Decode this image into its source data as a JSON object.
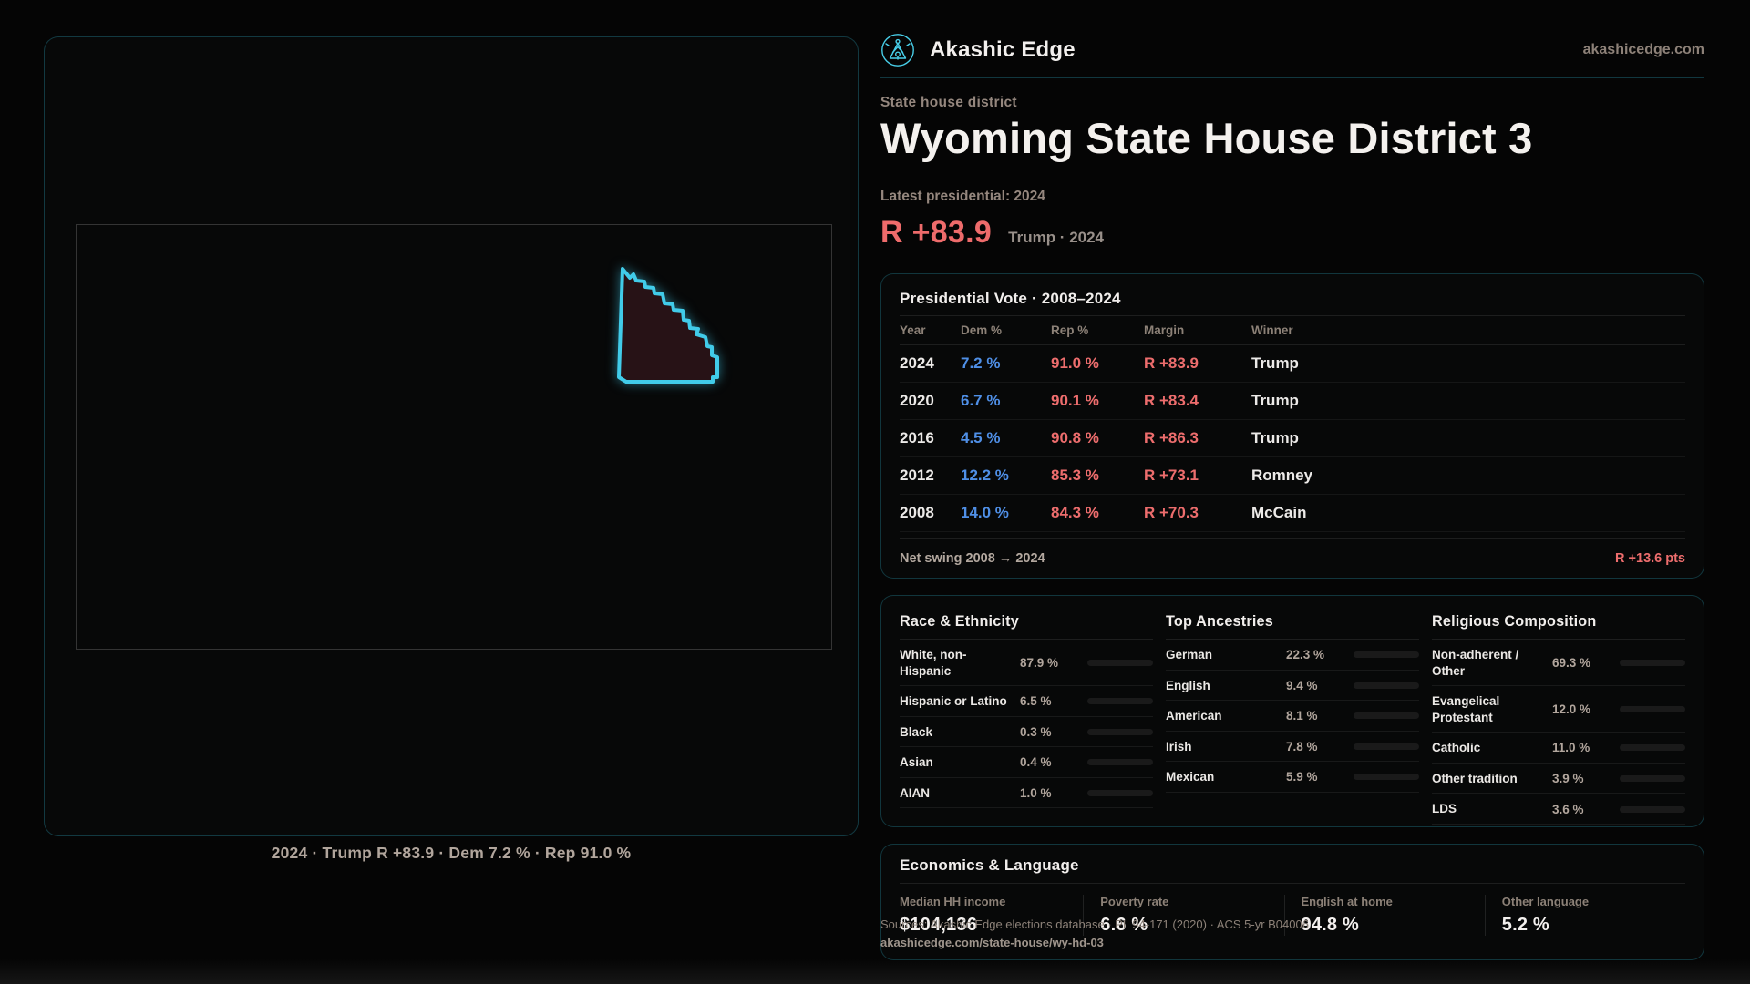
{
  "brand": {
    "name": "Akashic Edge",
    "site": "akashicedge.com"
  },
  "hero": {
    "eyebrow": "State house district",
    "title": "Wyoming State House District 3",
    "latest_label": "Latest presidential: 2024",
    "margin_value": "R +83.9",
    "margin_context": "Trump · 2024"
  },
  "map": {
    "caption": "2024 · Trump R +83.9 · Dem 7.2 % · Rep 91.0 %"
  },
  "presidential": {
    "title": "Presidential Vote · 2008–2024",
    "columns": [
      "Year",
      "Dem %",
      "Rep %",
      "Margin",
      "Winner"
    ],
    "rows": [
      {
        "year": "2024",
        "dem": "7.2 %",
        "rep": "91.0 %",
        "margin": "R +83.9",
        "winner": "Trump"
      },
      {
        "year": "2020",
        "dem": "6.7 %",
        "rep": "90.1 %",
        "margin": "R +83.4",
        "winner": "Trump"
      },
      {
        "year": "2016",
        "dem": "4.5 %",
        "rep": "90.8 %",
        "margin": "R +86.3",
        "winner": "Trump"
      },
      {
        "year": "2012",
        "dem": "12.2 %",
        "rep": "85.3 %",
        "margin": "R +73.1",
        "winner": "Romney"
      },
      {
        "year": "2008",
        "dem": "14.0 %",
        "rep": "84.3 %",
        "margin": "R +70.3",
        "winner": "McCain"
      }
    ],
    "net_swing_label": "Net swing 2008 → 2024",
    "net_swing_value": "R +13.6 pts"
  },
  "demographics": {
    "panels": [
      {
        "title": "Race & Ethnicity",
        "rows": [
          {
            "label": "White, non-Hispanic",
            "value": "87.9 %",
            "pct": 87.9,
            "color": "#93a7c0"
          },
          {
            "label": "Hispanic or Latino",
            "value": "6.5 %",
            "pct": 6.5,
            "color": "#e2a43e"
          },
          {
            "label": "Black",
            "value": "0.3 %",
            "pct": 0.3,
            "color": "#8d7fdb"
          },
          {
            "label": "Asian",
            "value": "0.4 %",
            "pct": 0.4,
            "color": "#38cfa4"
          },
          {
            "label": "AIAN",
            "value": "1.0 %",
            "pct": 1.0,
            "color": "#e07f37"
          }
        ]
      },
      {
        "title": "Top Ancestries",
        "rows": [
          {
            "label": "German",
            "value": "22.3 %",
            "pct": 22.3,
            "color": "#8fa6c2"
          },
          {
            "label": "English",
            "value": "9.4 %",
            "pct": 9.4,
            "color": "#8fa6c2"
          },
          {
            "label": "American",
            "value": "8.1 %",
            "pct": 8.1,
            "color": "#8fa6c2"
          },
          {
            "label": "Irish",
            "value": "7.8 %",
            "pct": 7.8,
            "color": "#8fa6c2"
          },
          {
            "label": "Mexican",
            "value": "5.9 %",
            "pct": 5.9,
            "color": "#e2a43e"
          }
        ]
      },
      {
        "title": "Religious Composition",
        "rows": [
          {
            "label": "Non-adherent / Other",
            "value": "69.3 %",
            "pct": 69.3,
            "color": "#767f8d"
          },
          {
            "label": "Evangelical Protestant",
            "value": "12.0 %",
            "pct": 12.0,
            "color": "#e87070"
          },
          {
            "label": "Catholic",
            "value": "11.0 %",
            "pct": 11.0,
            "color": "#e4bb3f"
          },
          {
            "label": "Other tradition",
            "value": "3.9 %",
            "pct": 3.9,
            "color": "#9aa2ad"
          },
          {
            "label": "LDS",
            "value": "3.6 %",
            "pct": 3.6,
            "color": "#2ed3b7"
          }
        ]
      }
    ]
  },
  "economics": {
    "title": "Economics & Language",
    "stats": [
      {
        "label": "Median HH income",
        "value": "$104,136"
      },
      {
        "label": "Poverty rate",
        "value": "6.6 %"
      },
      {
        "label": "English at home",
        "value": "94.8 %"
      },
      {
        "label": "Other language",
        "value": "5.2 %"
      }
    ]
  },
  "footer": {
    "sources": "Sources: Akashic Edge elections database · PL 94-171 (2020) · ACS 5-yr B04006",
    "permalink": "akashicedge.com/state-house/wy-hd-03"
  },
  "colors": {
    "accent_cyan": "#41cbe9",
    "dem_blue": "#4f8fe6",
    "rep_red": "#ed6d6d",
    "district_fill": "#271216",
    "panel_border": "rgba(44,162,186,0.30)"
  }
}
